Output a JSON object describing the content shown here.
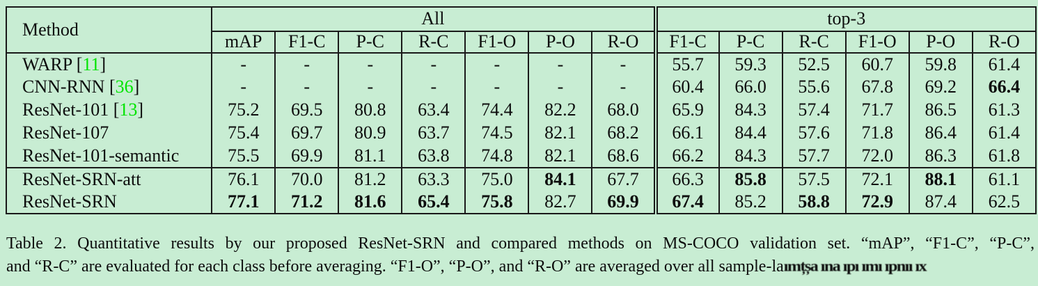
{
  "colors": {
    "page_background": "#c8edd3",
    "text": "#0d0d0d",
    "citation_green": "#00e400",
    "table_border": "#1a1a1a"
  },
  "table": {
    "method_header": "Method",
    "citation_brackets": [
      "[",
      "]"
    ],
    "groups": [
      {
        "label": "All",
        "columns": [
          "mAP",
          "F1-C",
          "P-C",
          "R-C",
          "F1-O",
          "P-O",
          "R-O"
        ]
      },
      {
        "label": "top-3",
        "columns": [
          "F1-C",
          "P-C",
          "R-C",
          "F1-O",
          "P-O",
          "R-O"
        ]
      }
    ],
    "section_break_row": 5,
    "rows": [
      {
        "method": "WARP",
        "citation": "11",
        "all": [
          "-",
          "-",
          "-",
          "-",
          "-",
          "-",
          "-"
        ],
        "top3": [
          "55.7",
          "59.3",
          "52.5",
          "60.7",
          "59.8",
          "61.4"
        ],
        "bold_all": [],
        "bold_top3": []
      },
      {
        "method": "CNN-RNN",
        "citation": "36",
        "all": [
          "-",
          "-",
          "-",
          "-",
          "-",
          "-",
          "-"
        ],
        "top3": [
          "60.4",
          "66.0",
          "55.6",
          "67.8",
          "69.2",
          "66.4"
        ],
        "bold_all": [],
        "bold_top3": [
          5
        ]
      },
      {
        "method": "ResNet-101",
        "citation": "13",
        "all": [
          "75.2",
          "69.5",
          "80.8",
          "63.4",
          "74.4",
          "82.2",
          "68.0"
        ],
        "top3": [
          "65.9",
          "84.3",
          "57.4",
          "71.7",
          "86.5",
          "61.3"
        ],
        "bold_all": [],
        "bold_top3": []
      },
      {
        "method": "ResNet-107",
        "citation": null,
        "all": [
          "75.4",
          "69.7",
          "80.9",
          "63.7",
          "74.5",
          "82.1",
          "68.2"
        ],
        "top3": [
          "66.1",
          "84.4",
          "57.6",
          "71.8",
          "86.4",
          "61.4"
        ],
        "bold_all": [],
        "bold_top3": []
      },
      {
        "method": "ResNet-101-semantic",
        "citation": null,
        "all": [
          "75.5",
          "69.9",
          "81.1",
          "63.8",
          "74.8",
          "82.1",
          "68.6"
        ],
        "top3": [
          "66.2",
          "84.3",
          "57.7",
          "72.0",
          "86.3",
          "61.8"
        ],
        "bold_all": [],
        "bold_top3": []
      },
      {
        "method": "ResNet-SRN-att",
        "citation": null,
        "all": [
          "76.1",
          "70.0",
          "81.2",
          "63.3",
          "75.0",
          "84.1",
          "67.7"
        ],
        "top3": [
          "66.3",
          "85.8",
          "57.5",
          "72.1",
          "88.1",
          "61.1"
        ],
        "bold_all": [
          5
        ],
        "bold_top3": [
          1,
          4
        ]
      },
      {
        "method": "ResNet-SRN",
        "citation": null,
        "all": [
          "77.1",
          "71.2",
          "81.6",
          "65.4",
          "75.8",
          "82.7",
          "69.9"
        ],
        "top3": [
          "67.4",
          "85.2",
          "58.8",
          "72.9",
          "87.4",
          "62.5"
        ],
        "bold_all": [
          0,
          1,
          2,
          3,
          4,
          6
        ],
        "bold_top3": [
          0,
          2,
          3
        ]
      }
    ]
  },
  "caption": {
    "line1": "Table 2. Quantitative results by our proposed ResNet-SRN and compared methods on MS-COCO validation set. “mAP”, “F1-C”, “P-C”,",
    "line2": "and “R-C” are evaluated for each class before averaging. “F1-O”, “P-O”, and “R-O” are averaged over all sample-la",
    "garbled_tail": "ımțșa ına ıpı ımı ıpnıı ıx"
  }
}
